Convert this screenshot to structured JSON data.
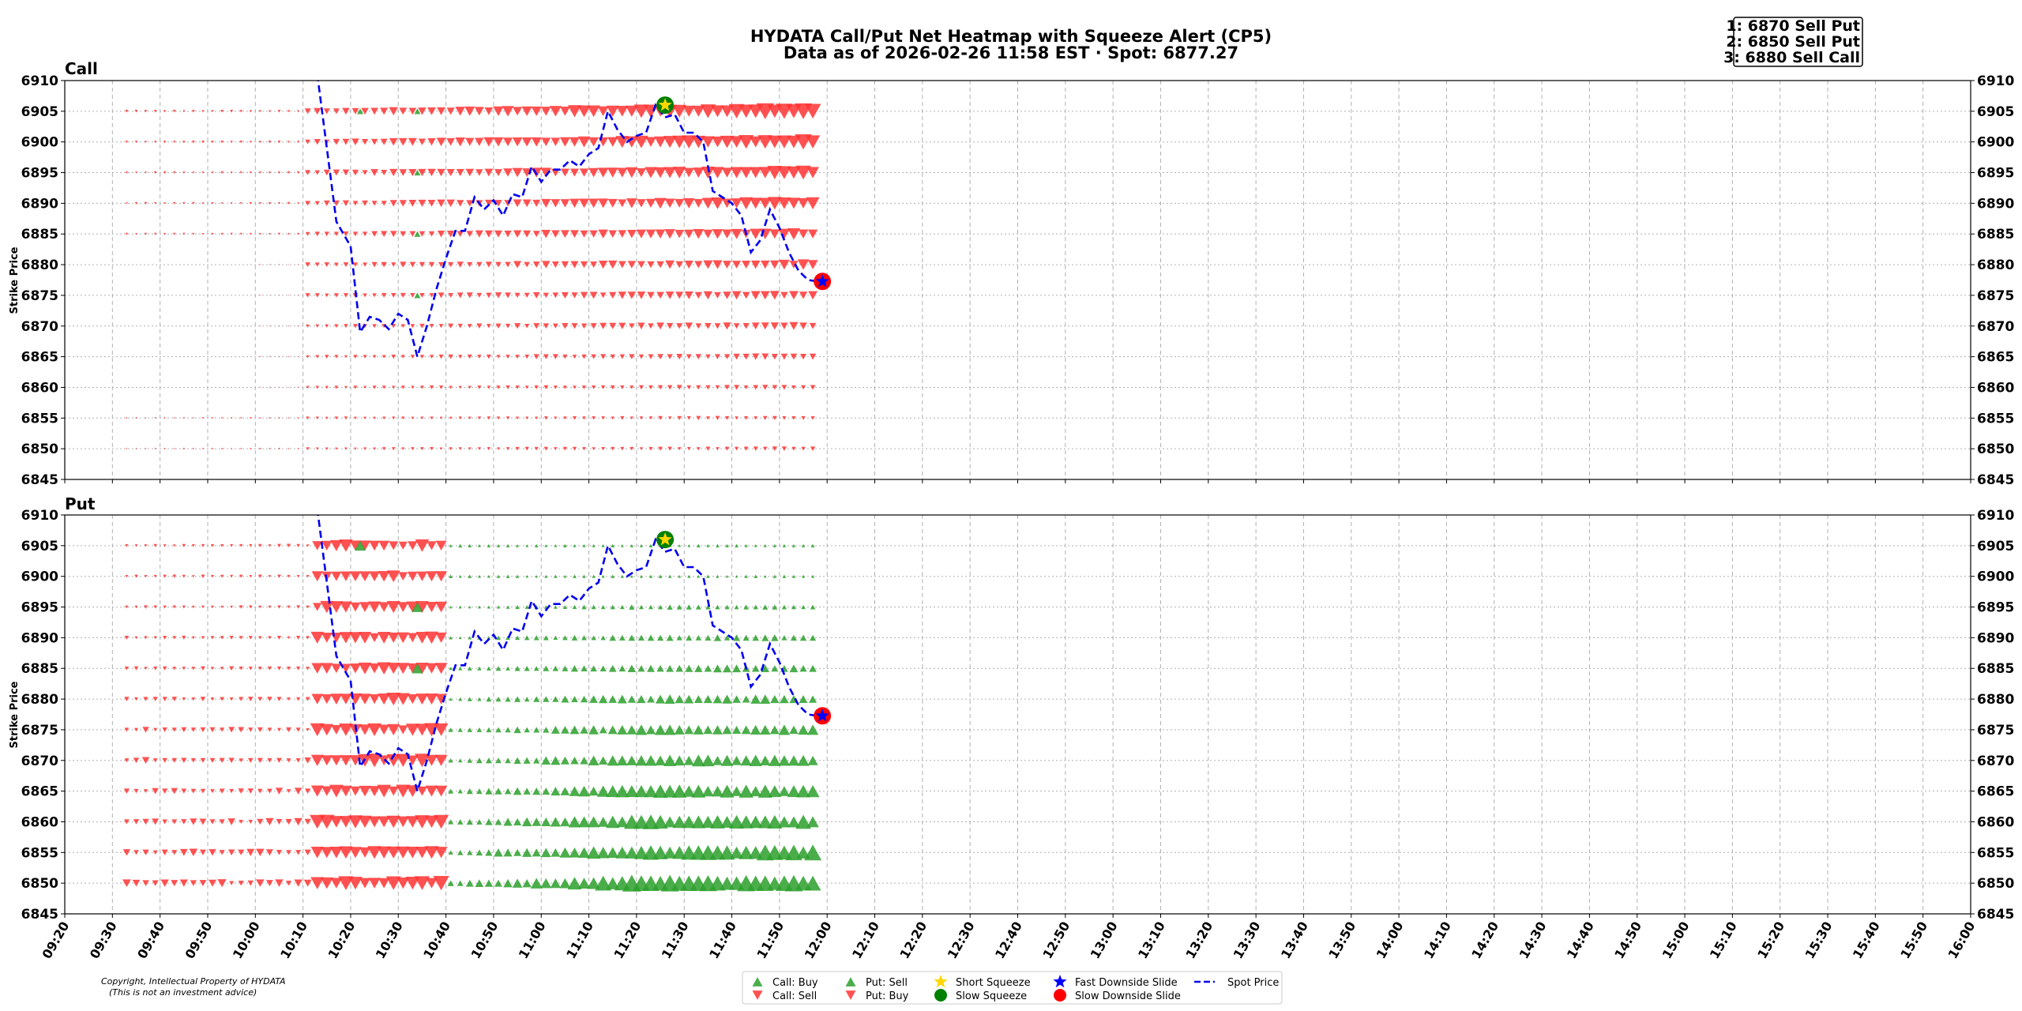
{
  "chart_data": {
    "type": "scatter",
    "title": "HYDATA Call/Put Net Heatmap with Squeeze Alert (CP5)",
    "subtitle": "Data as of 2026-02-26 11:58 EST · Spot: 6877.27",
    "ylabel": "Strike Price",
    "ylim": [
      6845,
      6910
    ],
    "yticks": [
      "6910",
      "6905",
      "6900",
      "6895",
      "6890",
      "6885",
      "6880",
      "6875",
      "6870",
      "6865",
      "6860",
      "6855",
      "6850",
      "6845"
    ],
    "xrange": [
      "09:20",
      "16:00"
    ],
    "xticks": [
      "09:20",
      "09:30",
      "09:40",
      "09:50",
      "10:00",
      "10:10",
      "10:20",
      "10:30",
      "10:40",
      "10:50",
      "11:00",
      "11:10",
      "11:20",
      "11:30",
      "11:40",
      "11:50",
      "12:00",
      "12:10",
      "12:20",
      "12:30",
      "12:40",
      "12:50",
      "13:00",
      "13:10",
      "13:20",
      "13:30",
      "13:40",
      "13:50",
      "14:00",
      "14:10",
      "14:20",
      "14:30",
      "14:40",
      "14:50",
      "15:00",
      "15:10",
      "15:20",
      "15:30",
      "15:40",
      "15:50",
      "16:00"
    ],
    "grid": true,
    "legend_position": "bottom-center",
    "panels": [
      {
        "title": "Call"
      },
      {
        "title": "Put"
      }
    ],
    "strikes": [
      6850,
      6855,
      6860,
      6865,
      6870,
      6875,
      6880,
      6885,
      6890,
      6895,
      6900,
      6905
    ],
    "spot_price": {
      "times": [
        "10:13",
        "10:17",
        "10:20",
        "10:22",
        "10:24",
        "10:26",
        "10:28",
        "10:30",
        "10:32",
        "10:34",
        "10:36",
        "10:38",
        "10:40",
        "10:42",
        "10:44",
        "10:46",
        "10:48",
        "10:50",
        "10:52",
        "10:54",
        "10:56",
        "10:58",
        "11:00",
        "11:02",
        "11:04",
        "11:06",
        "11:08",
        "11:10",
        "11:12",
        "11:14",
        "11:16",
        "11:18",
        "11:20",
        "11:22",
        "11:24",
        "11:26",
        "11:28",
        "11:30",
        "11:32",
        "11:34",
        "11:36",
        "11:38",
        "11:40",
        "11:42",
        "11:44",
        "11:46",
        "11:48",
        "11:50",
        "11:52",
        "11:54",
        "11:56",
        "11:58"
      ],
      "values": [
        6911,
        6887,
        6883,
        6869,
        6871.5,
        6871,
        6869.5,
        6872,
        6871,
        6865,
        6870,
        6876,
        6881,
        6885.5,
        6885.5,
        6891,
        6889,
        6890.5,
        6888,
        6891.5,
        6891,
        6896,
        6893.5,
        6895.5,
        6895.5,
        6897,
        6896,
        6898,
        6899,
        6905,
        6902,
        6900,
        6901,
        6901.5,
        6906,
        6904,
        6904.5,
        6901.5,
        6901.5,
        6900,
        6892,
        6891,
        6890,
        6888,
        6882,
        6884,
        6889,
        6886,
        6882,
        6879,
        6877.5,
        6877.27
      ]
    },
    "squeeze_alerts": [
      {
        "panel": "Call",
        "time": "11:26",
        "strike": 6906,
        "type": "Short Squeeze / Slow Squeeze"
      },
      {
        "panel": "Call",
        "time": "11:59",
        "strike": 6877.27,
        "type": "Fast Downside Slide / Slow Downside Slide"
      },
      {
        "panel": "Put",
        "time": "11:26",
        "strike": 6906,
        "type": "Short Squeeze / Slow Squeeze"
      },
      {
        "panel": "Put",
        "time": "11:59",
        "strike": 6877.27,
        "type": "Fast Downside Slide / Slow Downside Slide"
      }
    ],
    "legend": [
      "Call: Buy",
      "Call: Sell",
      "Put: Sell",
      "Put: Buy",
      "Short Squeeze",
      "Slow Squeeze",
      "Fast Downside Slide",
      "Slow Downside Slide",
      "Spot Price"
    ],
    "colors": {
      "buy_green": "#2ca02c",
      "sell_red": "#ff3333",
      "spot": "#0000ee",
      "squeeze_yellow": "#ffd700",
      "squeeze_green": "#008000",
      "slide_blue": "#0000ff",
      "slide_red": "#ff0000"
    },
    "heatmap_note": "marker size = net flow magnitude; Call panel predominantly Sell (red down-triangles) from 10:10 to 12:00; Put panel Sell before 10:40 and Buy (green up-triangles) after 10:40"
  },
  "annotations": {
    "top_picks": [
      "1: 6870 Sell Put",
      "2: 6850 Sell Put",
      "3: 6880 Sell Call"
    ]
  },
  "footer": {
    "copyright": "Copyright, Intellectual Property of HYDATA",
    "disclaimer": "(This is not an investment advice)"
  }
}
